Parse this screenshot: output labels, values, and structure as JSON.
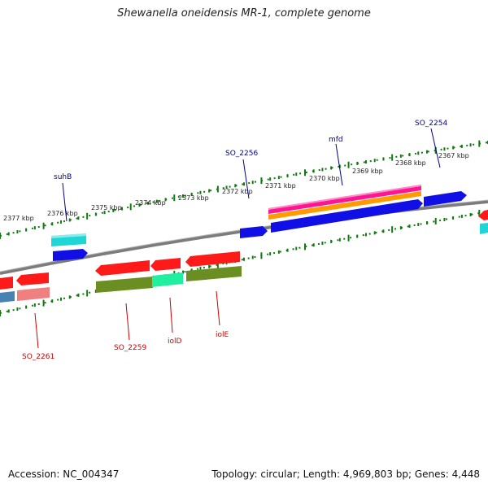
{
  "title": "Shewanella oneidensis MR-1, complete genome",
  "footer": {
    "accession": "Accession: NC_004347",
    "topology": "Topology: circular; Length: 4,969,803 bp; Genes: 4,448"
  },
  "colors": {
    "backbone": "#7c7c7c",
    "scale_tick": "#117a11",
    "forward_label": "#00008b",
    "reverse_label": "#cc0000",
    "red": "#ff1a1a",
    "blue": "#1010e6",
    "cyan": "#1fd6d6",
    "olive": "#6b8e23",
    "springgreen": "#1fef9f",
    "steelblue": "#4682b4",
    "salmon": "#f08080",
    "magenta": "#ff1493",
    "orange": "#ff9a00"
  },
  "scale_labels": [
    "2377 kbp",
    "2376 kbp",
    "2375 kbp",
    "2374 kbp",
    "2373 kbp",
    "2372 kbp",
    "2371 kbp",
    "2370 kbp",
    "2369 kbp",
    "2368 kbp",
    "2367 kbp"
  ],
  "gene_labels": {
    "forward": [
      "suhB",
      "SO_2256",
      "mfd",
      "SO_2254"
    ],
    "reverse": [
      "SO_2261",
      "SO_2259",
      "iolD",
      "iolE"
    ]
  }
}
